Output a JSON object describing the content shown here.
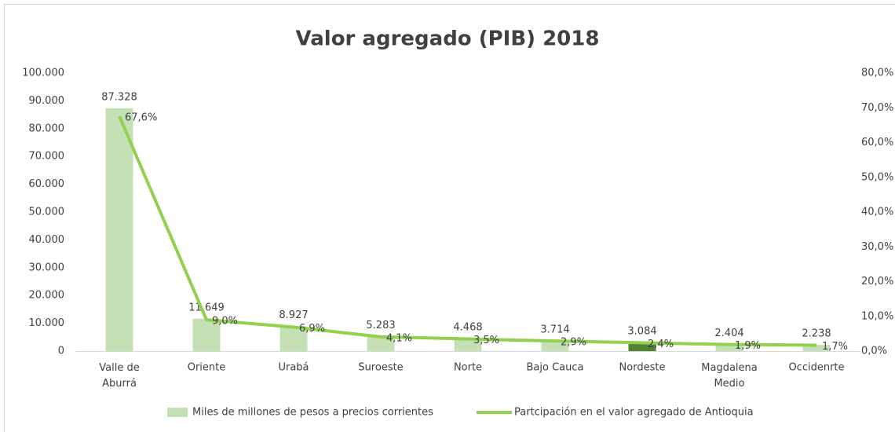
{
  "chart_data": {
    "type": "bar-line",
    "title": "Valor agregado (PIB) 2018",
    "categories": [
      "Valle de Aburrá",
      "Oriente",
      "Urabá",
      "Suroeste",
      "Norte",
      "Bajo Cauca",
      "Nordeste",
      "Magdalena Medio",
      "Occidenrte"
    ],
    "series": [
      {
        "name": "Miles de millones de pesos a precios corrientes",
        "type": "bar",
        "color": "#c5e0b4",
        "colors": [
          "#c5e0b4",
          "#c5e0b4",
          "#c5e0b4",
          "#c5e0b4",
          "#c5e0b4",
          "#c5e0b4",
          "#548235",
          "#c5e0b4",
          "#c5e0b4"
        ],
        "values": [
          87328,
          11649,
          8927,
          5283,
          4468,
          3714,
          3084,
          2404,
          2238
        ],
        "value_labels": [
          "87.328",
          "11.649",
          "8.927",
          "5.283",
          "4.468",
          "3.714",
          "3.084",
          "2.404",
          "2.238"
        ]
      },
      {
        "name": "Partcipación en el valor agregado de Antioquia",
        "type": "line",
        "axis": "y2",
        "color": "#92d050",
        "values": [
          67.6,
          9.0,
          6.9,
          4.1,
          3.5,
          2.9,
          2.4,
          1.9,
          1.7
        ],
        "value_labels": [
          "67,6%",
          "9,0%",
          "6,9%",
          "4,1%",
          "3,5%",
          "2,9%",
          "2,4%",
          "1,9%",
          "1,7%"
        ]
      }
    ],
    "ylim": [
      0,
      100000
    ],
    "yticks": [
      0,
      {
        "value": 10000,
        "label": "10.000"
      },
      {
        "value": 20000,
        "label": "20.000"
      },
      {
        "value": 30000,
        "label": "30.000"
      },
      {
        "value": 40000,
        "label": "40.000"
      },
      {
        "value": 50000,
        "label": "50.000"
      },
      {
        "value": 60000,
        "label": "60.000"
      },
      {
        "value": 70000,
        "label": "70.000"
      },
      {
        "value": 80000,
        "label": "80.000"
      },
      {
        "value": 90000,
        "label": "90.000"
      },
      {
        "value": 100000,
        "label": "100.000"
      }
    ],
    "y2lim": [
      0,
      80
    ],
    "y2ticks": [
      {
        "value": 0,
        "label": "0,0%"
      },
      {
        "value": 10,
        "label": "10,0%"
      },
      {
        "value": 20,
        "label": "20,0%"
      },
      {
        "value": 30,
        "label": "30,0%"
      },
      {
        "value": 40,
        "label": "40,0%"
      },
      {
        "value": 50,
        "label": "50,0%"
      },
      {
        "value": 60,
        "label": "60,0%"
      },
      {
        "value": 70,
        "label": "70,0%"
      },
      {
        "value": 80,
        "label": "80,0%"
      }
    ],
    "grid": false,
    "legend": "bottom"
  }
}
